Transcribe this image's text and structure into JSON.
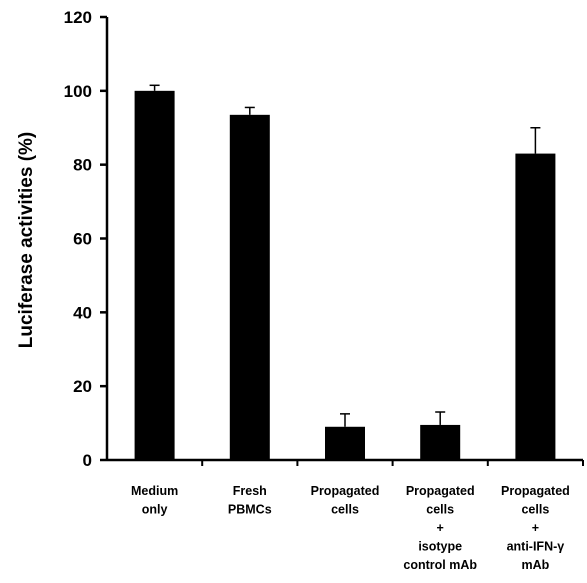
{
  "chart_data": {
    "type": "bar",
    "ylabel": "Luciferase activities (%)",
    "xlabel": "",
    "ylim": [
      0,
      120
    ],
    "yticks": [
      "0",
      "20",
      "40",
      "60",
      "80",
      "100",
      "120"
    ],
    "categories": [
      [
        "Medium",
        "only"
      ],
      [
        "Fresh",
        "PBMCs"
      ],
      [
        "Propagated",
        "cells"
      ],
      [
        "Propagated",
        "cells",
        "+",
        "isotype",
        "control mAb"
      ],
      [
        "Propagated",
        "cells",
        "+",
        "anti-IFN-γ",
        "mAb"
      ]
    ],
    "values": [
      100,
      93.5,
      9,
      9.5,
      83
    ],
    "errors": [
      1.5,
      2,
      3.5,
      3.5,
      7
    ],
    "colors": {
      "bar": "#000000",
      "axis": "#000000"
    }
  }
}
